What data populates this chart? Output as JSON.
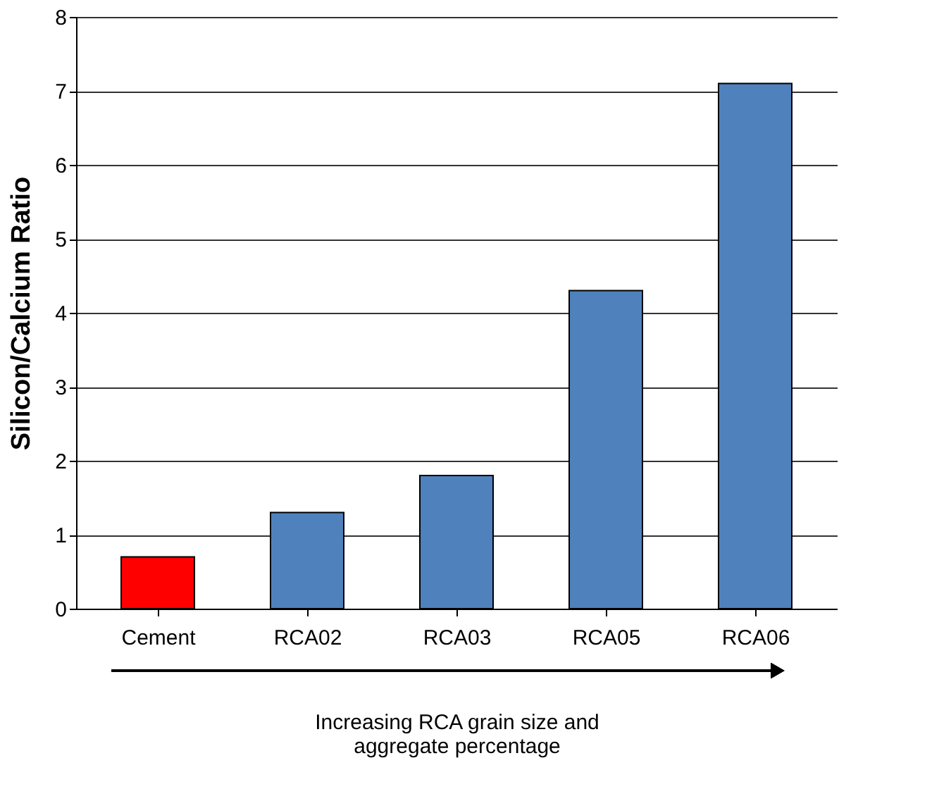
{
  "chart_data": {
    "type": "bar",
    "ylabel": "Silicon/Calcium Ratio",
    "xlabel": "Increasing RCA grain size and\naggregate percentage",
    "categories": [
      "Cement",
      "RCA02",
      "RCA03",
      "RCA05",
      "RCA06"
    ],
    "values": [
      0.7,
      1.3,
      1.8,
      4.3,
      7.1
    ],
    "colors": [
      "#ff0000",
      "#4f81bd",
      "#4f81bd",
      "#4f81bd",
      "#4f81bd"
    ],
    "ylim": [
      0,
      8
    ],
    "yticks": [
      0,
      1,
      2,
      3,
      4,
      5,
      6,
      7,
      8
    ],
    "grid": "y"
  }
}
